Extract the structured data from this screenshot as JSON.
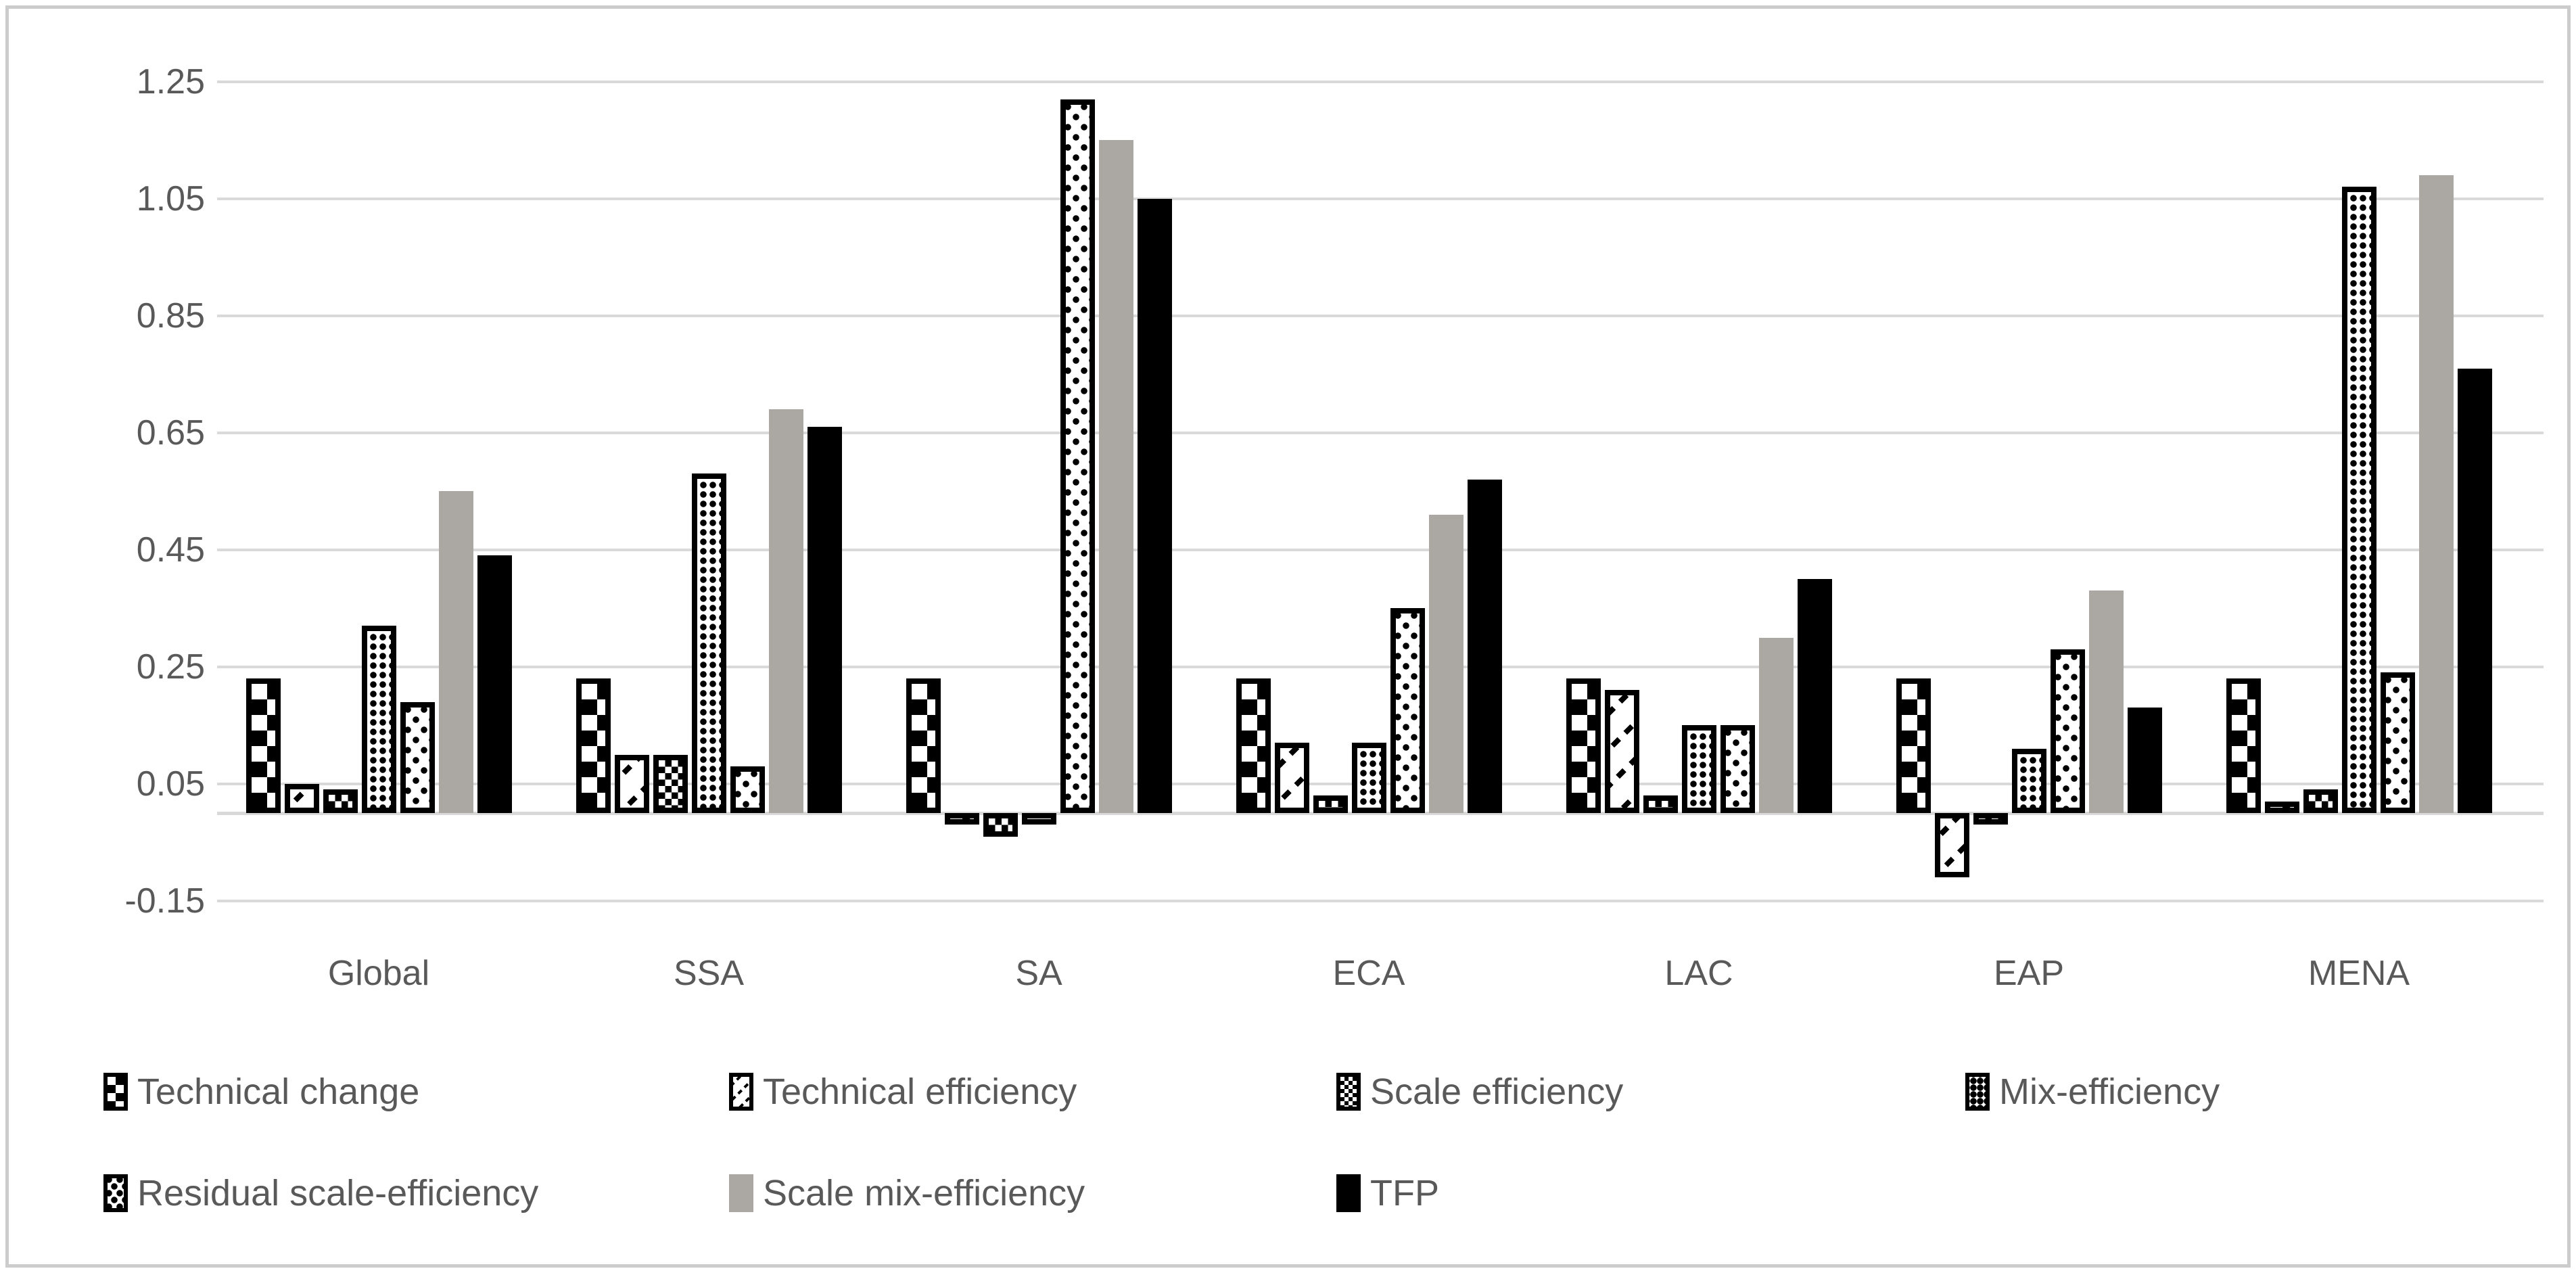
{
  "chart_data": {
    "type": "bar",
    "title": "",
    "xlabel": "",
    "ylabel": "",
    "categories": [
      "Global",
      "SSA",
      "SA",
      "ECA",
      "LAC",
      "EAP",
      "MENA"
    ],
    "series": [
      {
        "name": "Technical change",
        "pattern": "checker-large",
        "values": [
          0.23,
          0.23,
          0.23,
          0.23,
          0.23,
          0.23,
          0.23
        ]
      },
      {
        "name": "Technical efficiency",
        "pattern": "diagonal-dash",
        "values": [
          0.05,
          0.1,
          -0.02,
          0.12,
          0.21,
          -0.11,
          0.02
        ]
      },
      {
        "name": "Scale efficiency",
        "pattern": "checker-small",
        "values": [
          0.04,
          0.1,
          -0.04,
          0.03,
          0.03,
          -0.02,
          0.04
        ]
      },
      {
        "name": "Mix-efficiency",
        "pattern": "dot-grid-dense",
        "values": [
          0.32,
          0.58,
          -0.02,
          0.12,
          0.15,
          0.11,
          1.07
        ]
      },
      {
        "name": "Residual scale-efficiency",
        "pattern": "dot-sparse",
        "values": [
          0.19,
          0.08,
          1.22,
          0.35,
          0.15,
          0.28,
          0.24
        ]
      },
      {
        "name": "Scale mix-efficiency",
        "pattern": "solid-gray",
        "values": [
          0.55,
          0.69,
          1.15,
          0.51,
          0.3,
          0.38,
          1.09
        ]
      },
      {
        "name": "TFP",
        "pattern": "solid-black",
        "values": [
          0.44,
          0.66,
          1.05,
          0.57,
          0.4,
          0.18,
          0.76
        ]
      }
    ],
    "y_ticks": [
      1.25,
      1.05,
      0.85,
      0.65,
      0.45,
      0.25,
      0.05,
      -0.15
    ],
    "y_tick_labels": [
      "1.25",
      "1.05",
      "0.85",
      "0.65",
      "0.45",
      "0.25",
      "0.05",
      "-0.15"
    ],
    "ylim": [
      -0.15,
      1.25
    ],
    "grid": true,
    "legend_position": "bottom",
    "colors": {
      "solid_gray_series": "#aba7a3",
      "solid_black_series": "#000000",
      "pattern_foreground": "#000000",
      "pattern_background": "#ffffff",
      "gridline": "#d9d9d9",
      "axis_text": "#595959",
      "frame_border": "#cccccc",
      "background": "#ffffff"
    }
  }
}
